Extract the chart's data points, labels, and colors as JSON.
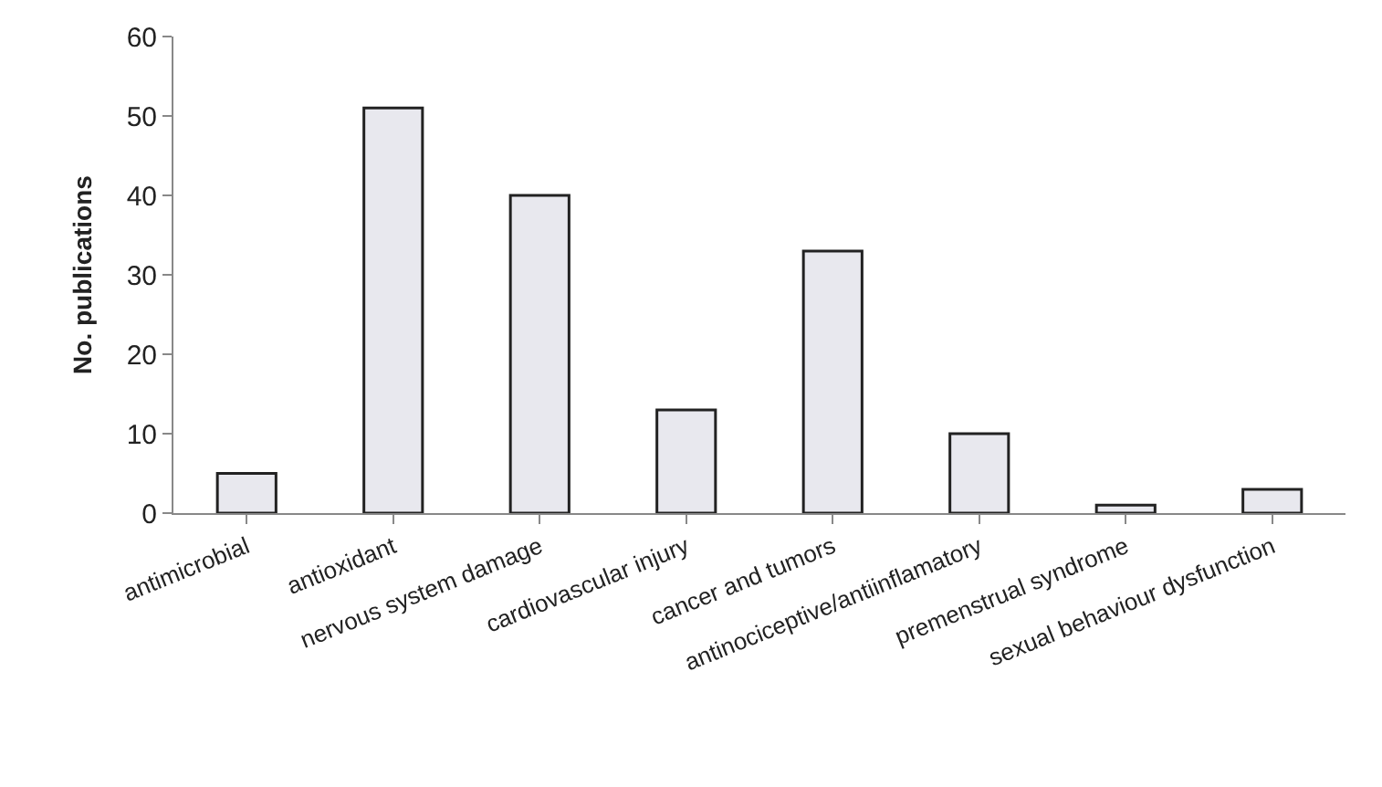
{
  "chart_data": {
    "type": "bar",
    "ylabel": "No. publications",
    "categories": [
      "antimicrobial",
      "antioxidant",
      "nervous system damage",
      "cardiovascular injury",
      "cancer and tumors",
      "antinociceptive/antiinflamatory",
      "premenstrual syndrome",
      "sexual behaviour dysfunction"
    ],
    "values": [
      5,
      51,
      40,
      13,
      33,
      10,
      1,
      3
    ],
    "color": "#e8e8ee",
    "ylim": [
      0,
      60
    ],
    "yticks": [
      0,
      10,
      20,
      30,
      40,
      50,
      60
    ]
  }
}
